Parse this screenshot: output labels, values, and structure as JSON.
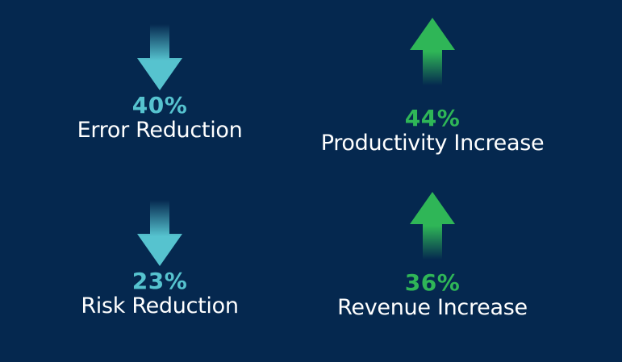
{
  "colors": {
    "background": "#05284f",
    "down_accent": "#56c3cf",
    "up_accent": "#2fb657",
    "label_text": "#ffffff"
  },
  "stats": {
    "error": {
      "value": "40%",
      "label": "Error Reduction",
      "direction": "down",
      "icon": "arrow-down-icon"
    },
    "productivity": {
      "value": "44%",
      "label": "Productivity Increase",
      "direction": "up",
      "icon": "arrow-up-icon"
    },
    "risk": {
      "value": "23%",
      "label": "Risk Reduction",
      "direction": "down",
      "icon": "arrow-down-icon"
    },
    "revenue": {
      "value": "36%",
      "label": "Revenue Increase",
      "direction": "up",
      "icon": "arrow-up-icon"
    }
  }
}
